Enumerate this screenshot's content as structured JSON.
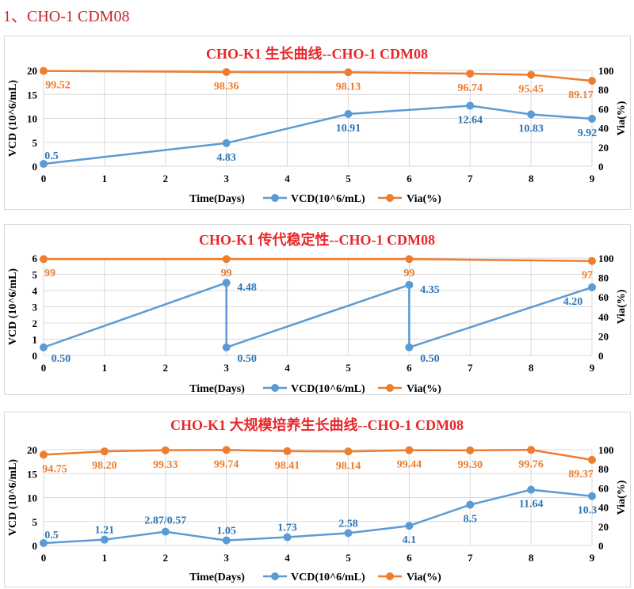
{
  "header": "1、CHO-1 CDM08",
  "colors": {
    "vcd_line": "#5b9bd5",
    "vcd_label": "#2e75b6",
    "via": "#ed7d31",
    "title": "#e8272a",
    "axis_text": "#000000",
    "grid": "#d9d9d9"
  },
  "chart_data": [
    {
      "type": "line",
      "title": "CHO-K1 生长曲线--CHO-1 CDM08",
      "xlabel": "Time(Days)",
      "ylabel": "VCD (10^6/mL)",
      "y2label": "Via(%)",
      "xlim": [
        0,
        9
      ],
      "xticks": [
        "0",
        "1",
        "2",
        "3",
        "4",
        "5",
        "6",
        "7",
        "8",
        "9"
      ],
      "ylim": [
        0,
        20
      ],
      "yticks": [
        "0",
        "5",
        "10",
        "15",
        "20"
      ],
      "y2lim": [
        0,
        100
      ],
      "y2ticks": [
        "0",
        "20",
        "40",
        "60",
        "80",
        "100"
      ],
      "grid": true,
      "legend": "bottom",
      "series": [
        {
          "name": "VCD(10^6/mL)",
          "axis": "left",
          "x": [
            0,
            3,
            5,
            7,
            8,
            9
          ],
          "y": [
            0.5,
            4.83,
            10.91,
            12.64,
            10.83,
            9.92
          ],
          "labels": [
            "0.5",
            "4.83",
            "10.91",
            "12.64",
            "10.83",
            "9.92"
          ]
        },
        {
          "name": "Via(%)",
          "axis": "right",
          "x": [
            0,
            3,
            5,
            7,
            8,
            9
          ],
          "y": [
            99.52,
            98.36,
            98.13,
            96.74,
            95.45,
            89.17
          ],
          "labels": [
            "99.52",
            "98.36",
            "98.13",
            "96.74",
            "95.45",
            "89.17"
          ]
        }
      ]
    },
    {
      "type": "line",
      "title": "CHO-K1 传代稳定性--CHO-1 CDM08",
      "xlabel": "Time(Days)",
      "ylabel": "VCD (10^6/mL)",
      "y2label": "Via(%)",
      "xlim": [
        0,
        9
      ],
      "xticks": [
        "0",
        "1",
        "2",
        "3",
        "4",
        "5",
        "6",
        "7",
        "8",
        "9"
      ],
      "ylim": [
        0,
        6
      ],
      "yticks": [
        "0",
        "1",
        "2",
        "3",
        "4",
        "5",
        "6"
      ],
      "y2lim": [
        0,
        100
      ],
      "y2ticks": [
        "0",
        "20",
        "40",
        "60",
        "80",
        "100"
      ],
      "grid": true,
      "legend": "bottom",
      "series": [
        {
          "name": "VCD(10^6/mL)",
          "axis": "left",
          "x": [
            0,
            3,
            3,
            6,
            6,
            9
          ],
          "y": [
            0.5,
            4.48,
            0.5,
            4.35,
            0.5,
            4.2
          ],
          "labels": [
            "0.50",
            "4.48",
            "0.50",
            "4.35",
            "0.50",
            "4.20"
          ]
        },
        {
          "name": "Via(%)",
          "axis": "right",
          "x": [
            0,
            3,
            6,
            9
          ],
          "y": [
            99,
            99,
            99,
            97
          ],
          "labels": [
            "99",
            "99",
            "99",
            "97"
          ]
        }
      ]
    },
    {
      "type": "line",
      "title": "CHO-K1 大规模培养生长曲线--CHO-1 CDM08",
      "xlabel": "Time(Days)",
      "ylabel": "VCD (10^6/mL)",
      "y2label": "Via(%)",
      "xlim": [
        0,
        9
      ],
      "xticks": [
        "0",
        "1",
        "2",
        "3",
        "4",
        "5",
        "6",
        "7",
        "8",
        "9"
      ],
      "ylim": [
        0,
        20
      ],
      "yticks": [
        "0",
        "5",
        "10",
        "15",
        "20"
      ],
      "y2lim": [
        0,
        100
      ],
      "y2ticks": [
        "0",
        "20",
        "40",
        "60",
        "80",
        "100"
      ],
      "grid": true,
      "legend": "bottom",
      "series": [
        {
          "name": "VCD(10^6/mL)",
          "axis": "left",
          "x": [
            0,
            1,
            2,
            3,
            4,
            5,
            6,
            7,
            8,
            9
          ],
          "y": [
            0.5,
            1.21,
            2.87,
            1.05,
            1.73,
            2.58,
            4.1,
            8.5,
            11.64,
            10.3
          ],
          "labels": [
            "0.5",
            "1.21",
            "2.87/0.57",
            "1.05",
            "1.73",
            "2.58",
            "4.1",
            "8.5",
            "11.64",
            "10.3"
          ]
        },
        {
          "name": "Via(%)",
          "axis": "right",
          "x": [
            0,
            1,
            2,
            3,
            4,
            5,
            6,
            7,
            8,
            9
          ],
          "y": [
            94.75,
            98.2,
            99.33,
            99.74,
            98.41,
            98.14,
            99.44,
            99.3,
            99.76,
            89.37
          ],
          "labels": [
            "94.75",
            "98.20",
            "99.33",
            "99.74",
            "98.41",
            "98.14",
            "99.44",
            "99.30",
            "99.76",
            "89.37"
          ]
        }
      ]
    }
  ]
}
